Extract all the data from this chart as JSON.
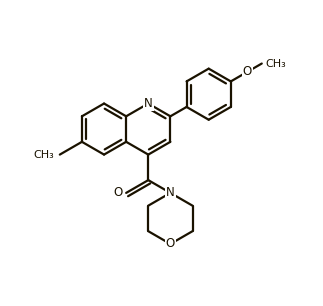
{
  "bg_color": "#ffffff",
  "line_color": "#1a1200",
  "line_width": 1.6,
  "font_size": 8.5,
  "figsize": [
    3.23,
    3.06
  ],
  "dpi": 100,
  "xlim": [
    0,
    10
  ],
  "ylim": [
    0,
    9.5
  ]
}
